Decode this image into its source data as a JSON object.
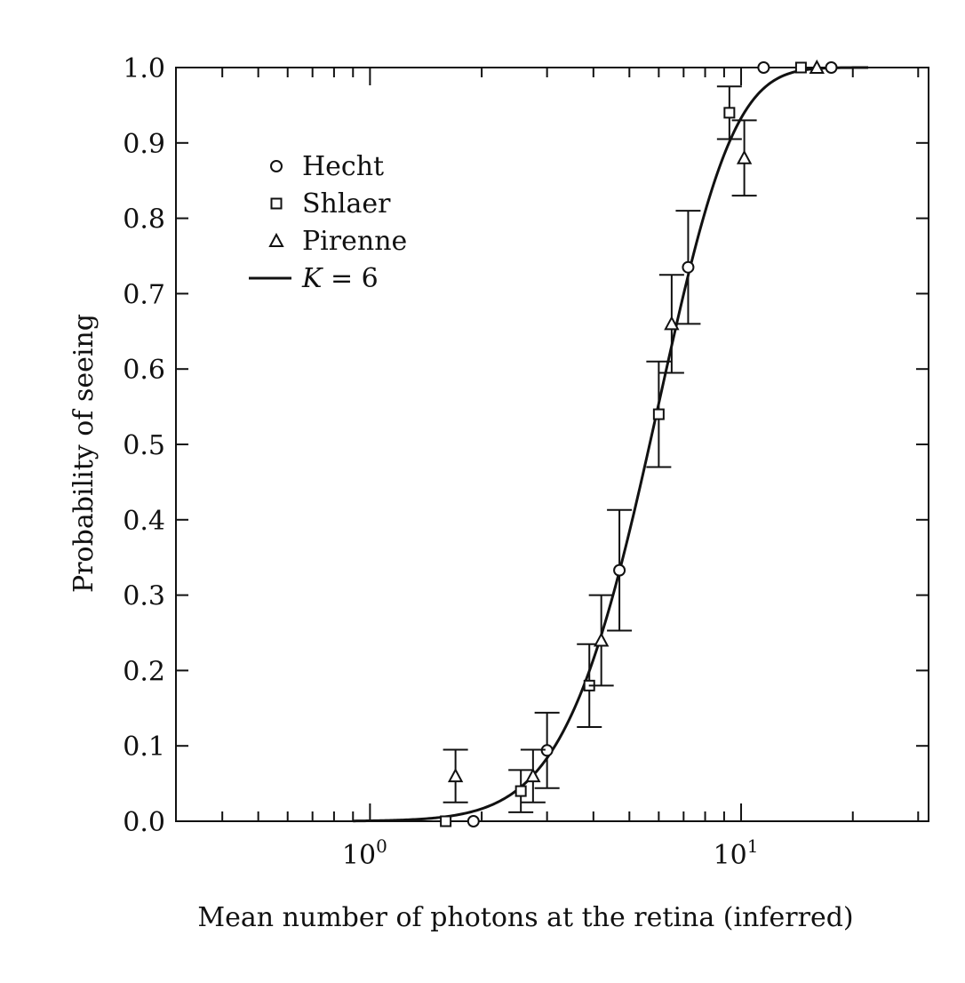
{
  "chart_data": {
    "type": "scatter",
    "xlabel": "Mean number of photons at the retina (inferred)",
    "ylabel": "Probability of seeing",
    "xscale": "log",
    "xlim": [
      0.3,
      32
    ],
    "ylim": [
      0,
      1.0
    ],
    "x_ticks": [
      {
        "value": 1,
        "base": "10",
        "exp": "0"
      },
      {
        "value": 10,
        "base": "10",
        "exp": "1"
      }
    ],
    "y_ticks": [
      "0.0",
      "0.1",
      "0.2",
      "0.3",
      "0.4",
      "0.5",
      "0.6",
      "0.7",
      "0.8",
      "0.9",
      "1.0"
    ],
    "legend": {
      "placement": "top-left",
      "entries": [
        {
          "marker": "circle",
          "label": "Hecht"
        },
        {
          "marker": "square",
          "label": "Shlaer"
        },
        {
          "marker": "triangle",
          "label": "Pirenne"
        },
        {
          "marker": "line",
          "label_italic": "K",
          "label_rest": " = 6"
        }
      ]
    },
    "series": [
      {
        "name": "Hecht",
        "marker": "circle",
        "points": [
          {
            "x": 1.9,
            "y": 0.0
          },
          {
            "x": 3.0,
            "y": 0.094,
            "err": 0.05
          },
          {
            "x": 4.7,
            "y": 0.333,
            "err": 0.08
          },
          {
            "x": 7.2,
            "y": 0.735,
            "err": 0.075
          },
          {
            "x": 11.5,
            "y": 1.0
          },
          {
            "x": 17.5,
            "y": 1.0
          }
        ]
      },
      {
        "name": "Shlaer",
        "marker": "square",
        "points": [
          {
            "x": 1.6,
            "y": 0.0
          },
          {
            "x": 2.55,
            "y": 0.04,
            "err": 0.028
          },
          {
            "x": 3.9,
            "y": 0.18,
            "err": 0.055
          },
          {
            "x": 6.0,
            "y": 0.54,
            "err": 0.07
          },
          {
            "x": 9.3,
            "y": 0.94,
            "err": 0.035
          },
          {
            "x": 14.5,
            "y": 1.0
          }
        ]
      },
      {
        "name": "Pirenne",
        "marker": "triangle",
        "points": [
          {
            "x": 1.7,
            "y": 0.06,
            "err": 0.035
          },
          {
            "x": 2.75,
            "y": 0.06,
            "err": 0.035
          },
          {
            "x": 4.2,
            "y": 0.24,
            "err": 0.06
          },
          {
            "x": 6.5,
            "y": 0.66,
            "err": 0.065
          },
          {
            "x": 10.2,
            "y": 0.88,
            "err": 0.05
          },
          {
            "x": 16.0,
            "y": 1.0
          }
        ]
      }
    ],
    "curve": {
      "name": "K = 6",
      "type": "poisson-cdf",
      "K": 6,
      "scale": 1.0
    }
  }
}
